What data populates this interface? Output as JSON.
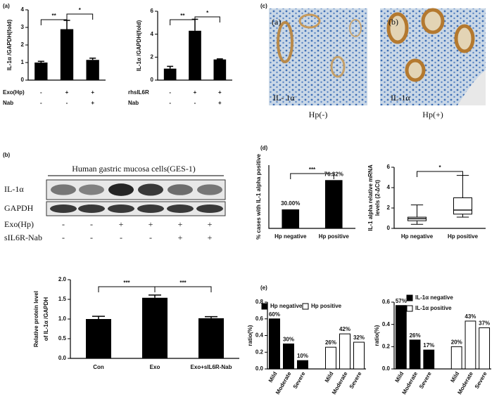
{
  "panels": [
    "(a)",
    "(b)",
    "(c)",
    "(d)",
    "(e)"
  ],
  "blot": {
    "title": "Human gastric mucosa cells(GES-1)",
    "rows": [
      "IL-1α",
      "GAPDH"
    ],
    "conditions": [
      {
        "label": "Exo(Hp)",
        "marks": [
          "-",
          "-",
          "+",
          "+",
          "+",
          "+"
        ]
      },
      {
        "label": "sIL6R-Nab",
        "marks": [
          "-",
          "-",
          "-",
          "-",
          "+",
          "+"
        ]
      }
    ]
  },
  "micrographs": [
    {
      "tag": "(a)",
      "stain": "IL- 1α",
      "caption": "Hp(-)"
    },
    {
      "tag": "(b)",
      "stain": "IL-1α",
      "caption": "Hp(+)"
    }
  ],
  "chart_data": [
    {
      "type": "bar",
      "y_label": [
        "IL-1α /GAPDH(fold)"
      ],
      "values": [
        1.0,
        2.9,
        1.15
      ],
      "errors": [
        0.07,
        0.5,
        0.1
      ],
      "color": "#000000",
      "ylim": [
        0,
        4
      ],
      "yticks": [
        0,
        1,
        2,
        3,
        4
      ],
      "annotations": [
        "**",
        "*"
      ],
      "conditions": [
        {
          "label": "Exo(Hp)",
          "marks": [
            "-",
            "+",
            "+"
          ]
        },
        {
          "label": "Nab",
          "marks": [
            "-",
            "-",
            "+"
          ]
        }
      ]
    },
    {
      "type": "bar",
      "y_label": [
        "IL-1α /GAPDH(fold)"
      ],
      "values": [
        1.0,
        4.3,
        1.8
      ],
      "errors": [
        0.2,
        1.0,
        0.05
      ],
      "color": "#000000",
      "ylim": [
        0,
        6
      ],
      "yticks": [
        0,
        2,
        4,
        6
      ],
      "annotations": [
        "**",
        "*"
      ],
      "conditions": [
        {
          "label": "rhsIL6R",
          "marks": [
            "-",
            "+",
            "+"
          ]
        },
        {
          "label": "Nab",
          "marks": [
            "-",
            "-",
            "+"
          ]
        }
      ]
    },
    {
      "type": "bar",
      "y_label": [
        "Relative protein level",
        "of IL-1α /GAPDH"
      ],
      "categories": [
        "Con",
        "Exo",
        "Exo+sIL6R-Nab"
      ],
      "values": [
        1.0,
        1.54,
        1.02
      ],
      "errors": [
        0.07,
        0.07,
        0.04
      ],
      "color": "#000000",
      "ylim": [
        0,
        2
      ],
      "yticks": [
        {
          "value": 0,
          "label": "0.0"
        },
        0.5,
        {
          "value": 1,
          "label": "1.0"
        },
        1.5,
        {
          "value": 2,
          "label": "2.0"
        }
      ],
      "annotations": [
        "***",
        "***"
      ]
    },
    {
      "type": "bar",
      "y_label": [
        "% cases with IL-1 alpha positive"
      ],
      "categories": [
        "Hp negative",
        "Hp positive"
      ],
      "values": [
        0.3,
        0.7632
      ],
      "value_labels": [
        "30.00%",
        "76.32%"
      ],
      "color": "#000000",
      "ylim": [
        0,
        1
      ],
      "annotations": [
        "***"
      ]
    },
    {
      "type": "box",
      "y_label": [
        "IL-1 alpha relative mRNA",
        "levels (2-ΔCt)"
      ],
      "categories": [
        "Hp negative",
        "Hp positive"
      ],
      "min": [
        0.4,
        1.1
      ],
      "q1": [
        0.75,
        1.4
      ],
      "median": [
        0.95,
        1.8
      ],
      "q3": [
        1.1,
        3.0
      ],
      "max": [
        2.3,
        5.2
      ],
      "ylim": [
        0,
        6
      ],
      "yticks": [
        0,
        2,
        4,
        6
      ],
      "annotations": [
        "*"
      ]
    },
    {
      "type": "bar",
      "y_label": [
        "ratio(%)"
      ],
      "categories": [
        "Mild",
        "Moderate",
        "Severe"
      ],
      "series": [
        {
          "name": "Hp negative",
          "color": "#000000",
          "values": [
            0.6,
            0.3,
            0.1
          ],
          "value_labels": [
            "60%",
            "30%",
            "10%"
          ]
        },
        {
          "name": "Hp positive",
          "color": "#ffffff",
          "values": [
            0.26,
            0.42,
            0.32
          ],
          "value_labels": [
            "26%",
            "42%",
            "32%"
          ]
        }
      ],
      "ylim": [
        0,
        0.8
      ],
      "yticks": [
        {
          "value": 0,
          "label": "0.0"
        },
        0.2,
        0.4,
        0.6,
        0.8
      ]
    },
    {
      "type": "bar",
      "y_label": [
        "ratio(%)"
      ],
      "categories": [
        "Mild",
        "Moderate",
        "Severe"
      ],
      "series": [
        {
          "name": "IL-1α  negative",
          "color": "#000000",
          "values": [
            0.57,
            0.26,
            0.17
          ],
          "value_labels": [
            "57%",
            "26%",
            "17%"
          ]
        },
        {
          "name": "IL-1α  positive",
          "color": "#ffffff",
          "values": [
            0.2,
            0.43,
            0.37
          ],
          "value_labels": [
            "20%",
            "43%",
            "37%"
          ]
        }
      ],
      "ylim": [
        0,
        0.6
      ],
      "yticks": [
        {
          "value": 0,
          "label": "0.0"
        },
        0.2,
        0.4,
        0.6
      ]
    }
  ]
}
